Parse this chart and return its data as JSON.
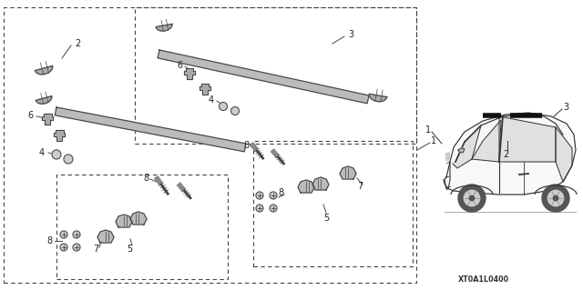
{
  "bg_color": "#ffffff",
  "line_color": "#444444",
  "diagram_code": "XT0A1L0400",
  "fig_width": 6.4,
  "fig_height": 3.19
}
